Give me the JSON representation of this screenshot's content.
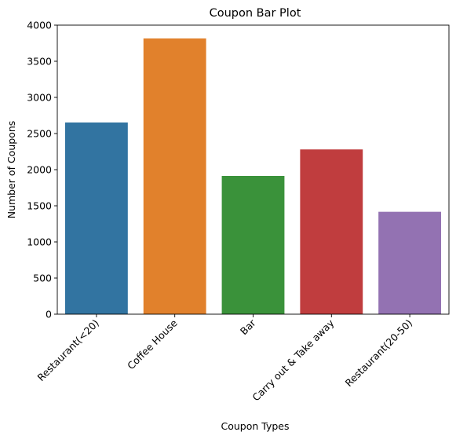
{
  "chart_data": {
    "type": "bar",
    "title": "Coupon Bar Plot",
    "xlabel": "Coupon Types",
    "ylabel": "Number of Coupons",
    "categories": [
      "Restaurant(<20)",
      "Coffee House",
      "Bar",
      "Carry out & Take away",
      "Restaurant(20-50)"
    ],
    "values": [
      2653,
      3816,
      1913,
      2280,
      1417
    ],
    "colors": [
      "#3274a1",
      "#e1812c",
      "#3a923a",
      "#c03d3e",
      "#9372b2"
    ],
    "ylim": [
      0,
      4000
    ],
    "yticks": [
      0,
      500,
      1000,
      1500,
      2000,
      2500,
      3000,
      3500,
      4000
    ],
    "ytick_labels": [
      "0",
      "500",
      "1000",
      "1500",
      "2000",
      "2500",
      "3000",
      "3500",
      "4000"
    ],
    "grid": false,
    "legend": "none"
  }
}
